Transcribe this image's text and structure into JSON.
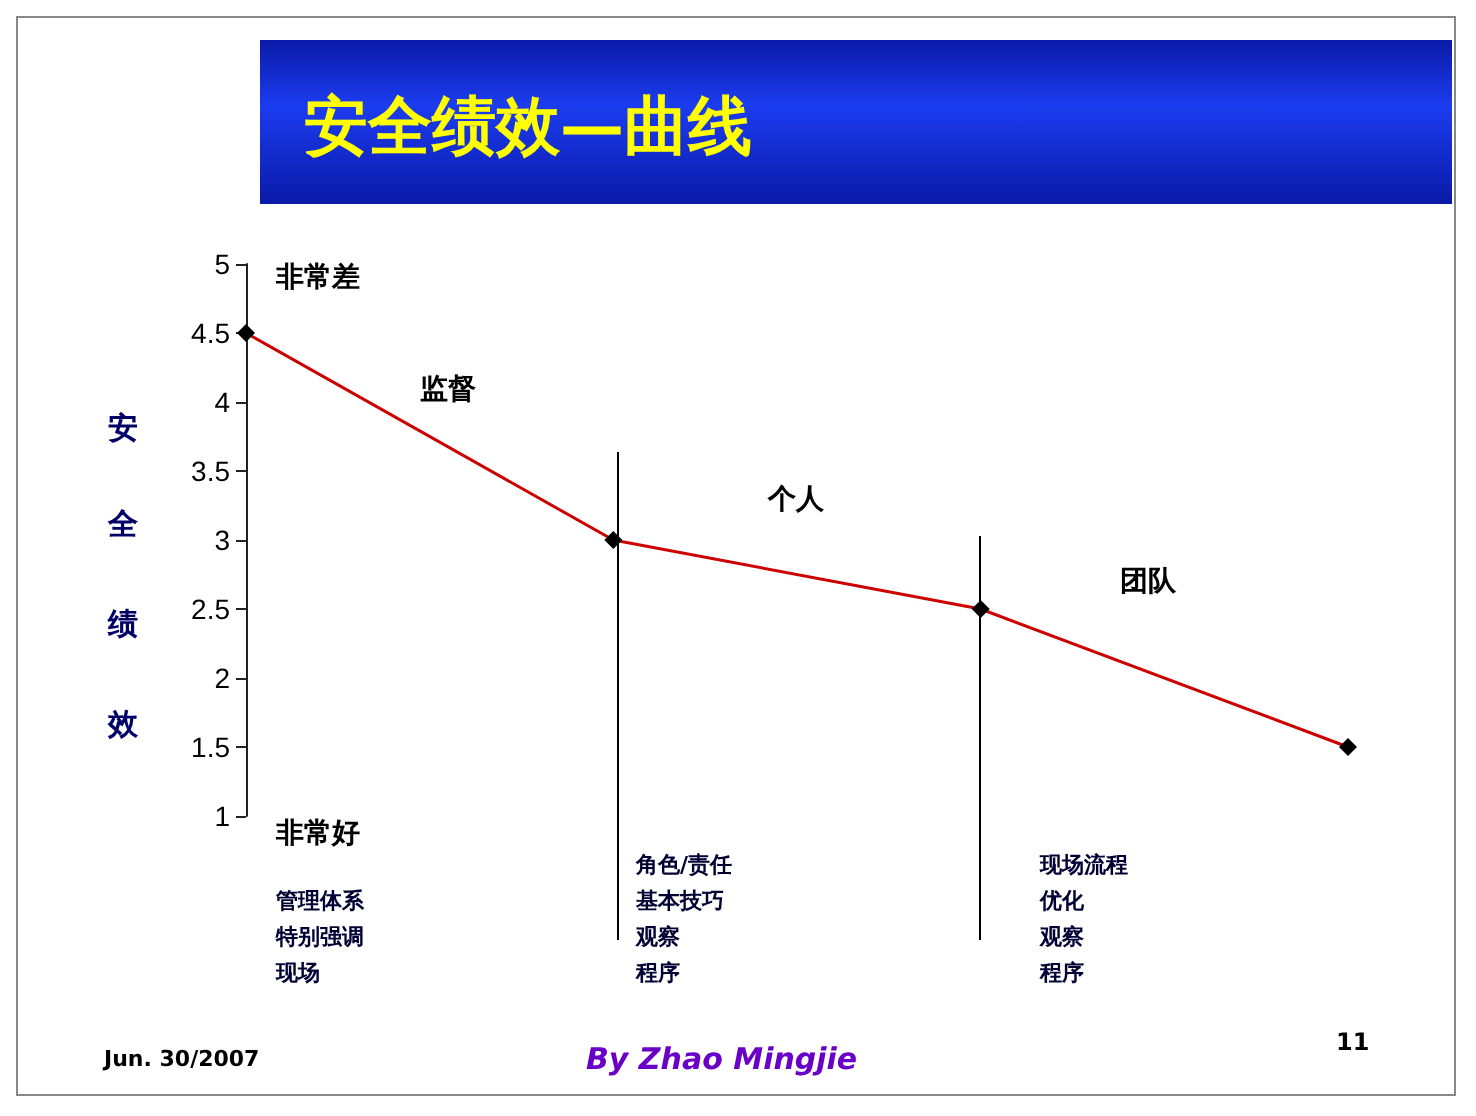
{
  "chart_data": {
    "type": "line",
    "title": "安全绩效—曲线",
    "ylabel": "安全绩效",
    "categories": [
      null,
      null,
      null,
      null
    ],
    "series": [
      {
        "color": "#cc0000",
        "values": [
          4.5,
          3,
          2.5,
          1.5
        ]
      }
    ],
    "ylim": [
      1,
      5
    ],
    "yticks": [
      1,
      1.5,
      2,
      2.5,
      3,
      3.5,
      4,
      4.5,
      5
    ],
    "tick_labels": "y",
    "grid": false,
    "marker": "diamond",
    "line_style": "solid",
    "annotations": [
      "非常差",
      "监督",
      "个人",
      "团队",
      "非常好",
      "管理体系",
      "特别强调",
      "现场",
      "角色/责任",
      "基本技巧",
      "观察",
      "程序",
      "现场流程",
      "优化",
      "观察",
      "程序",
      "Jun. 30/2007",
      "By Zhao Mingjie",
      "11"
    ]
  }
}
